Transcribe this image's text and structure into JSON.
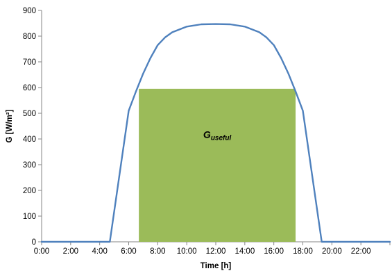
{
  "chart_data": {
    "type": "line",
    "title": "",
    "xlabel": "Time [h]",
    "ylabel": "G [W/m²]",
    "xlim": [
      0,
      24
    ],
    "ylim": [
      0,
      900
    ],
    "x_ticks": [
      0,
      2,
      4,
      6,
      8,
      10,
      12,
      14,
      16,
      18,
      20,
      22
    ],
    "x_tick_labels": [
      "0:00",
      "2:00",
      "4:00",
      "6:00",
      "8:00",
      "10:00",
      "12:00",
      "14:00",
      "16:00",
      "18:00",
      "20:00",
      "22:00"
    ],
    "y_ticks": [
      0,
      100,
      200,
      300,
      400,
      500,
      600,
      700,
      800,
      900
    ],
    "y_tick_labels": [
      "0",
      "100",
      "200",
      "300",
      "400",
      "500",
      "600",
      "700",
      "800",
      "900"
    ],
    "grid": false,
    "legend": "none",
    "series": [
      {
        "color": "#4f81bd",
        "x": [
          0,
          4.7,
          6.0,
          6.5,
          7.0,
          7.5,
          8.0,
          8.5,
          9.0,
          10.0,
          11.0,
          12.0,
          13.0,
          14.0,
          15.0,
          15.5,
          16.0,
          16.5,
          17.0,
          17.5,
          18.0,
          19.3,
          24
        ],
        "y": [
          0,
          0,
          510,
          585,
          655,
          715,
          765,
          795,
          815,
          837,
          846,
          847,
          846,
          837,
          815,
          795,
          765,
          715,
          655,
          585,
          510,
          0,
          0
        ]
      }
    ],
    "shaded_region": {
      "x_start": 6.7,
      "x_end": 17.5,
      "y_top": 595,
      "color": "#9bbb59",
      "label_main": "G",
      "label_sub": "useful"
    }
  }
}
